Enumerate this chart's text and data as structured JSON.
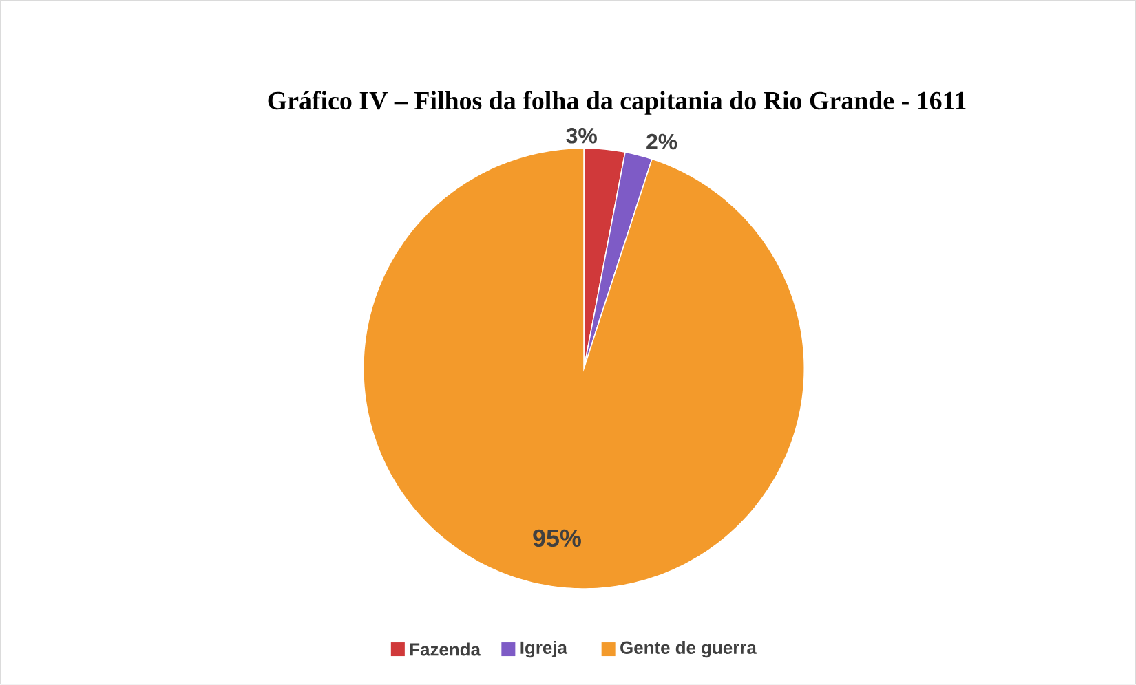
{
  "chart_data": {
    "type": "pie",
    "title": "Gráfico IV – Filhos da folha da capitania do Rio Grande - 1611",
    "categories": [
      "Fazenda",
      "Igreja",
      "Gente de guerra"
    ],
    "values": [
      3,
      2,
      95
    ],
    "colors": [
      "#d0393a",
      "#7e5bc6",
      "#f39a2b"
    ],
    "value_labels": [
      "3%",
      "2%",
      "95%"
    ],
    "legend": "bottom"
  }
}
